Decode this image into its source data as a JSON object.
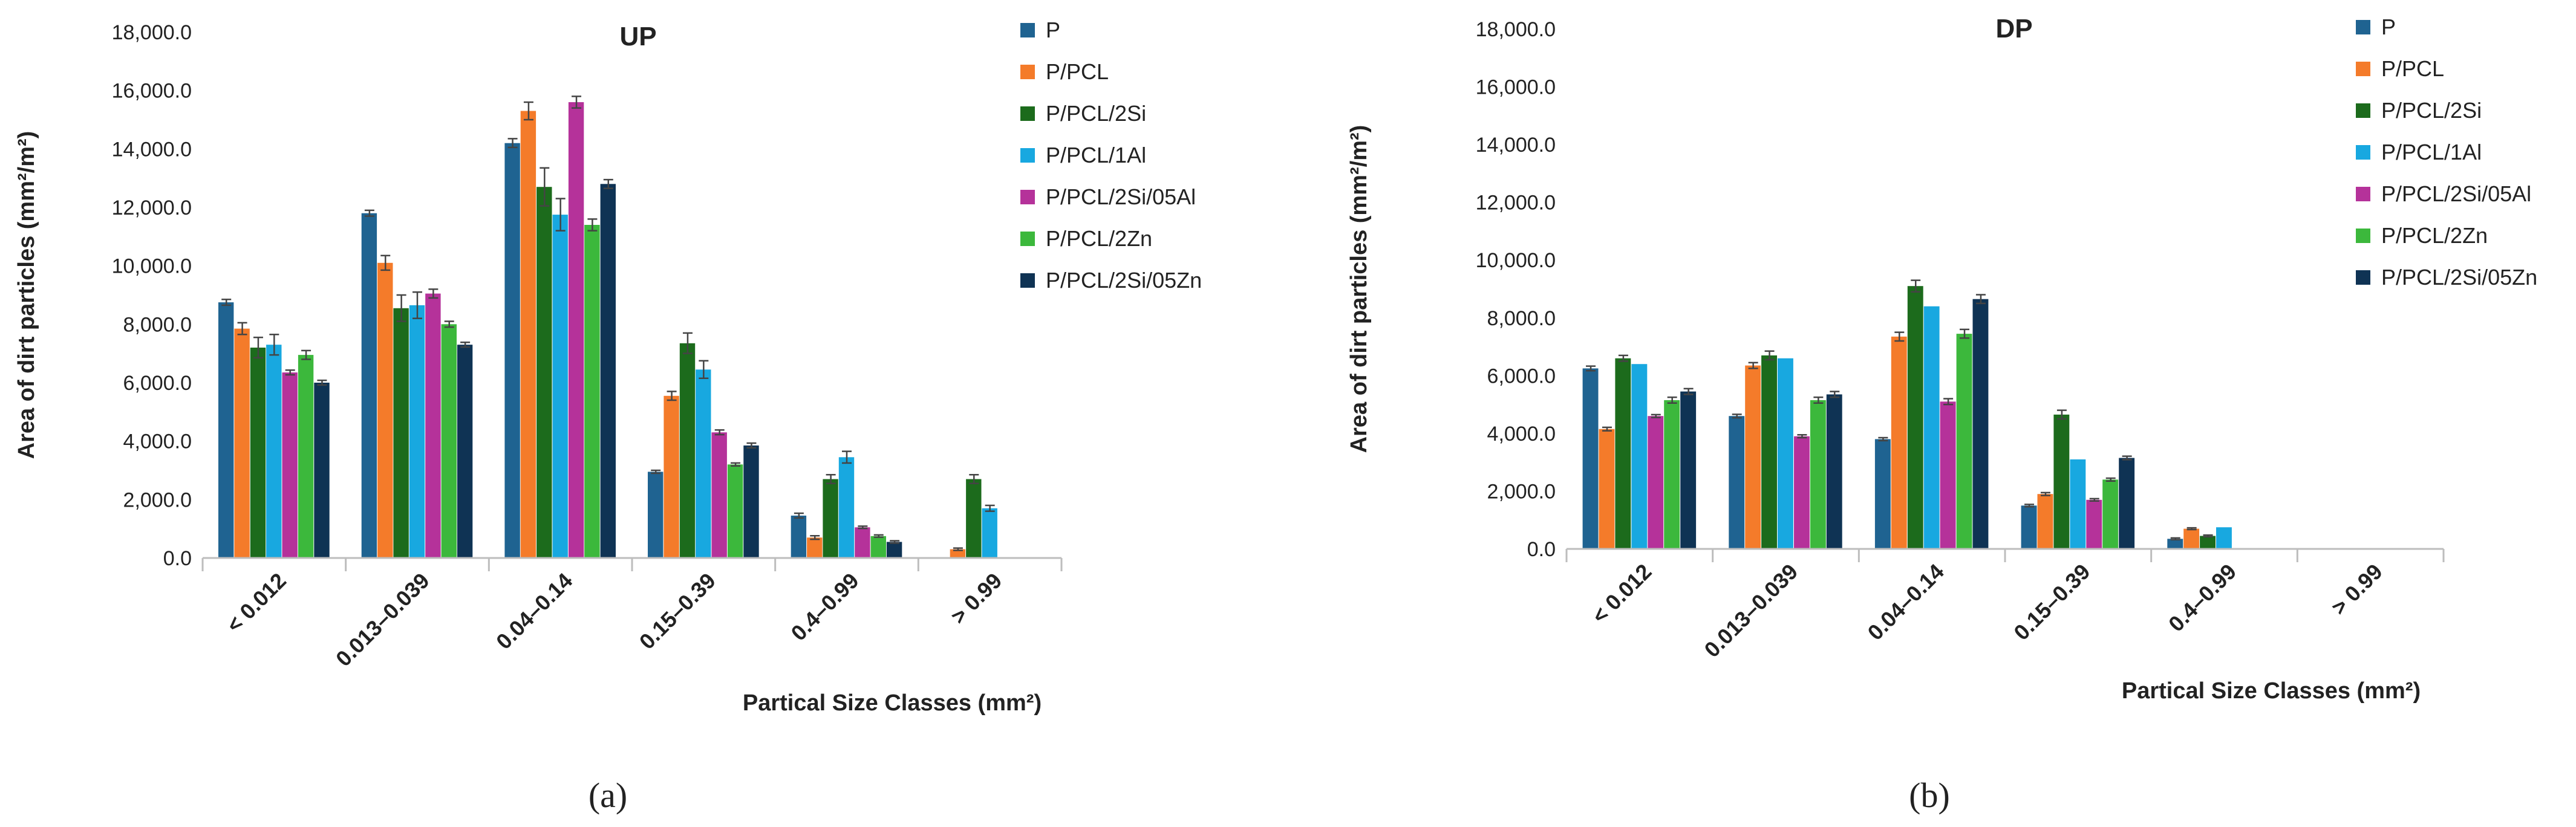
{
  "chart_data": [
    {
      "type": "bar",
      "title": "UP",
      "panel_label": "a",
      "ylabel": "Area of dirt particles  (mm²/m²)",
      "xlabel": "Partical Size Classes (mm²)",
      "ylim": [
        0,
        18000
      ],
      "yticks": [
        0,
        2000,
        4000,
        6000,
        8000,
        10000,
        12000,
        14000,
        16000,
        18000
      ],
      "ytick_labels": [
        "0.0",
        "2,000.0",
        "4,000.0",
        "6,000.0",
        "8,000.0",
        "10,000.0",
        "12,000.0",
        "14,000.0",
        "16,000.0",
        "18,000.0"
      ],
      "categories": [
        "< 0.012",
        "0.013–0.039",
        "0.04–0.14",
        "0.15–0.39",
        "0.4–0.99",
        "> 0.99"
      ],
      "legend_position": "right",
      "series": [
        {
          "name": "P",
          "color": "#1f6391",
          "values": [
            8750,
            11800,
            14200,
            2950,
            1450,
            0
          ],
          "errors": [
            100,
            100,
            150,
            50,
            80,
            0
          ]
        },
        {
          "name": "P/PCL",
          "color": "#f47b2a",
          "values": [
            7850,
            10100,
            15300,
            5550,
            700,
            300
          ],
          "errors": [
            200,
            250,
            300,
            150,
            60,
            40
          ]
        },
        {
          "name": "P/PCL/2Si",
          "color": "#1c6b1c",
          "values": [
            7200,
            8550,
            12700,
            7350,
            2700,
            2700
          ],
          "errors": [
            350,
            450,
            650,
            350,
            150,
            150
          ]
        },
        {
          "name": "P/PCL/1Al",
          "color": "#18a8e0",
          "values": [
            7300,
            8650,
            11750,
            6450,
            3450,
            1700
          ],
          "errors": [
            350,
            450,
            550,
            300,
            200,
            100
          ]
        },
        {
          "name": "P/PCL/2Si/05Al",
          "color": "#b5329a",
          "values": [
            6350,
            9050,
            15600,
            4300,
            1050,
            0
          ],
          "errors": [
            80,
            150,
            200,
            80,
            40,
            0
          ]
        },
        {
          "name": "P/PCL/2Zn",
          "color": "#3cb83c",
          "values": [
            6950,
            8000,
            11400,
            3200,
            750,
            0
          ],
          "errors": [
            150,
            100,
            200,
            50,
            40,
            0
          ]
        },
        {
          "name": "P/PCL/2Si/05Zn",
          "color": "#0f3354",
          "values": [
            6000,
            7300,
            12800,
            3850,
            550,
            0
          ],
          "errors": [
            80,
            80,
            150,
            80,
            40,
            0
          ]
        }
      ]
    },
    {
      "type": "bar",
      "title": "DP",
      "panel_label": "b",
      "ylabel": "Area of dirt particles  (mm²/m²)",
      "xlabel": "Partical Size Classes (mm²)",
      "ylim": [
        0,
        18000
      ],
      "yticks": [
        0,
        2000,
        4000,
        6000,
        8000,
        10000,
        12000,
        14000,
        16000,
        18000
      ],
      "ytick_labels": [
        "0.0",
        "2,000.0",
        "4,000.0",
        "6,000.0",
        "8,000.0",
        "10,000.0",
        "12,000.0",
        "14,000.0",
        "16,000.0",
        "18,000.0"
      ],
      "categories": [
        "< 0.012",
        "0.013–0.039",
        "0.04–0.14",
        "0.15–0.39",
        "0.4–0.99",
        "> 0.99"
      ],
      "legend_position": "right",
      "series": [
        {
          "name": "P",
          "color": "#1f6391",
          "values": [
            6250,
            4600,
            3800,
            1500,
            350,
            0
          ],
          "errors": [
            80,
            60,
            50,
            40,
            30,
            0
          ]
        },
        {
          "name": "P/PCL",
          "color": "#f47b2a",
          "values": [
            4150,
            6350,
            7350,
            1900,
            700,
            0
          ],
          "errors": [
            60,
            100,
            150,
            50,
            30,
            0
          ]
        },
        {
          "name": "P/PCL/2Si",
          "color": "#1c6b1c",
          "values": [
            6600,
            6700,
            9100,
            4650,
            450,
            0
          ],
          "errors": [
            100,
            150,
            200,
            150,
            30,
            0
          ]
        },
        {
          "name": "P/PCL/1Al",
          "color": "#18a8e0",
          "values": [
            6400,
            6600,
            8400,
            3100,
            750,
            0
          ],
          "errors": [
            0,
            0,
            0,
            0,
            0,
            0
          ]
        },
        {
          "name": "P/PCL/2Si/05Al",
          "color": "#b5329a",
          "values": [
            4600,
            3900,
            5100,
            1700,
            0,
            0
          ],
          "errors": [
            50,
            50,
            100,
            40,
            0,
            0
          ]
        },
        {
          "name": "P/PCL/2Zn",
          "color": "#3cb83c",
          "values": [
            5150,
            5150,
            7450,
            2400,
            0,
            0
          ],
          "errors": [
            100,
            100,
            150,
            50,
            0,
            0
          ]
        },
        {
          "name": "P/PCL/2Si/05Zn",
          "color": "#0f3354",
          "values": [
            5450,
            5350,
            8650,
            3150,
            0,
            0
          ],
          "errors": [
            100,
            100,
            150,
            60,
            0,
            0
          ]
        }
      ]
    }
  ],
  "captions": [
    "(a)",
    "(b)"
  ]
}
